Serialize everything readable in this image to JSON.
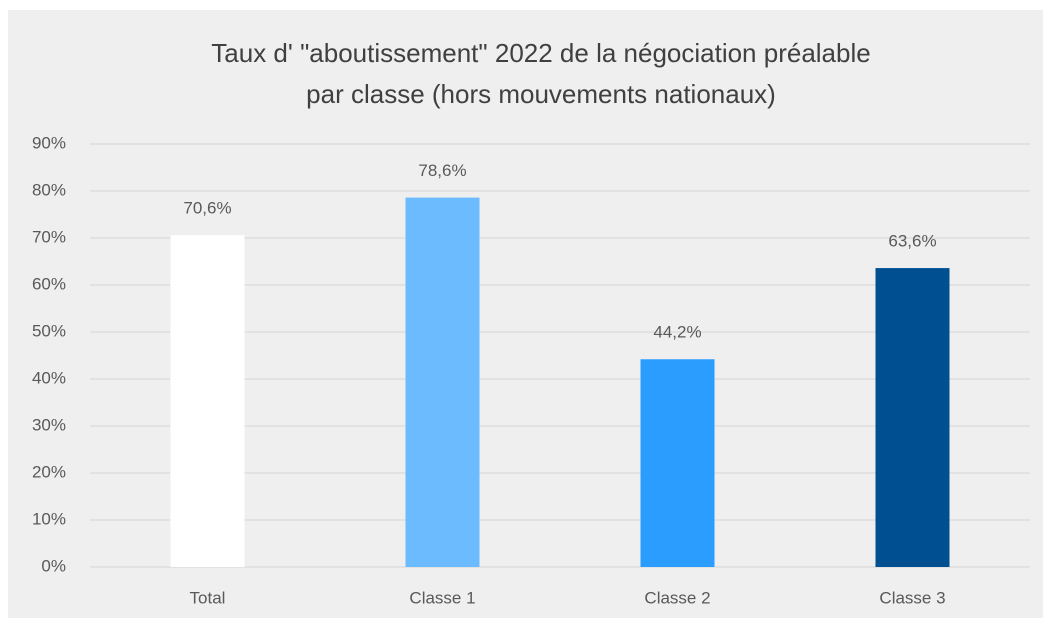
{
  "chart_data": {
    "type": "bar",
    "title": [
      "Taux d' \"aboutissement\" 2022 de la négociation préalable",
      "par classe (hors mouvements nationaux)"
    ],
    "categories": [
      "Total",
      "Classe 1",
      "Classe 2",
      "Classe 3"
    ],
    "values": [
      70.6,
      78.6,
      44.2,
      63.6
    ],
    "value_labels": [
      "70,6%",
      "78,6%",
      "44,2%",
      "63,6%"
    ],
    "colors": [
      "#ffffff",
      "#6cbbff",
      "#2a9dff",
      "#005091"
    ],
    "ylim": [
      0,
      90
    ],
    "yticks": [
      {
        "value": 0,
        "label": "0%"
      },
      {
        "value": 10,
        "label": "10%"
      },
      {
        "value": 20,
        "label": "20%"
      },
      {
        "value": 30,
        "label": "30%"
      },
      {
        "value": 40,
        "label": "40%"
      },
      {
        "value": 50,
        "label": "50%"
      },
      {
        "value": 60,
        "label": "60%"
      },
      {
        "value": 70,
        "label": "70%"
      },
      {
        "value": 80,
        "label": "80%"
      },
      {
        "value": 90,
        "label": "90%"
      }
    ],
    "grid": true
  }
}
